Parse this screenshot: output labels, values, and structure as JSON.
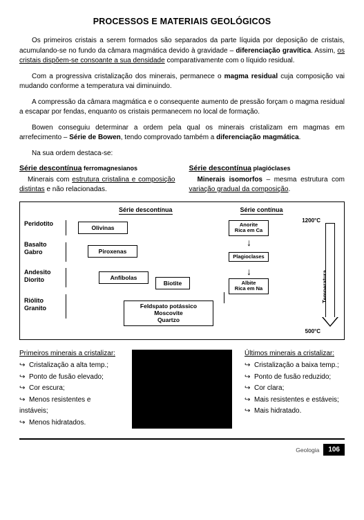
{
  "title": "PROCESSOS E MATERIAIS GEOLÓGICOS",
  "paragraphs": {
    "p1a": "Os primeiros cristais a serem formados são separados da parte líquida por deposição de cristais, acumulando-se no fundo da câmara magmática devido à gravidade – ",
    "p1b": "diferenciação gravítica",
    "p1c": ". Assim, ",
    "p1d": "os cristais dispõem-se consoante a sua densidade",
    "p1e": " comparativamente com o líquido residual.",
    "p2a": "Com a progressiva cristalização dos minerais, permanece o ",
    "p2b": "magma residual",
    "p2c": " cuja composição vai mudando conforme a temperatura vai diminuindo.",
    "p3": "A compressão da câmara magmática e o consequente aumento de pressão forçam o magma residual a escapar por fendas, enquanto os cristais permanecem no local de formação.",
    "p4a": "Bowen conseguiu determinar a ordem pela qual os minerais cristalizam em magmas em arrefecimento – ",
    "p4b": "Série de Bowen",
    "p4c": ", tendo comprovado também a ",
    "p4d": "diferenciação magmática",
    "p4e": ".",
    "p5": "Na sua ordem destaca-se:"
  },
  "series": {
    "left": {
      "hdr_main": "Série descontínua",
      "hdr_sub": " ferromagnesianos",
      "body_a": "Minerais com ",
      "body_b": "estrutura cristalina e composição distintas",
      "body_c": " e não relacionadas."
    },
    "right": {
      "hdr_main": "Série descontínua",
      "hdr_sub": " plagióclases",
      "body_a": "Minerais isomorfos",
      "body_b": " – mesma estrutura com ",
      "body_c": "variação gradual da composição",
      "body_d": "."
    }
  },
  "diagram": {
    "hdr_disc": "Série descontínua",
    "hdr_cont": "Série contínua",
    "rocks": {
      "r1": "Peridotito",
      "r2a": "Basalto",
      "r2b": "Gabro",
      "r3a": "Andesito",
      "r3b": "Diorito",
      "r4a": "Riólito",
      "r4b": "Granito"
    },
    "minerals": {
      "olivinas": "Olivinas",
      "piroxenas": "Piroxenas",
      "anfibolas": "Anfíbolas",
      "biotite": "Biotite",
      "feldspato_l1": "Feldspato potássico",
      "feldspato_l2": "Moscovite",
      "feldspato_l3": "Quartzo"
    },
    "cont": {
      "anorite_l1": "Anorite",
      "anorite_l2": "Rica em Ca",
      "plagioclases": "Plagioclases",
      "albite_l1": "Albite",
      "albite_l2": "Rica em Na"
    },
    "temp_label": "Temperatura",
    "temp_high": "1200°C",
    "temp_low": "500°C",
    "arrow": "↓"
  },
  "bullets": {
    "left": {
      "hdr_u": "Primeiros mine",
      "hdr_rest": "rais a cristalizar:",
      "items": [
        "Cristalização a alta temp.;",
        "Ponto de fusão elevado;",
        "Cor escura;",
        "Menos resistentes e instáveis;",
        "Menos hidratados."
      ]
    },
    "right": {
      "hdr_u": "Últimos minera",
      "hdr_rest": "is a cristalizar:",
      "items": [
        "Cristalização a baixa temp.;",
        "Ponto de fusão reduzido;",
        "Cor clara;",
        "Mais resistentes e estáveis;",
        "Mais hidratado."
      ]
    },
    "arrow": "↪"
  },
  "footer": {
    "section": "Geologia",
    "page": "106"
  }
}
